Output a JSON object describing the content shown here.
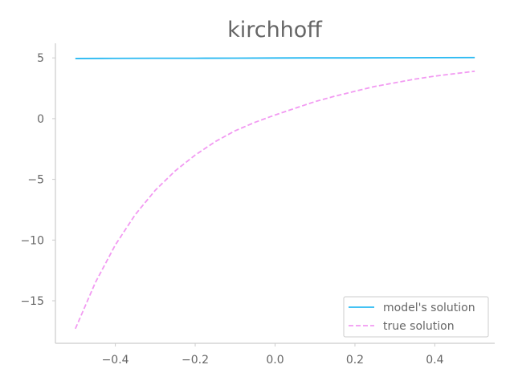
{
  "chart_data": {
    "type": "line",
    "title": "kirchhoff",
    "xlabel": "",
    "ylabel": "",
    "xlim": [
      -0.55,
      0.55
    ],
    "ylim": [
      -18.5,
      6.2
    ],
    "x_ticks": [
      -0.4,
      -0.2,
      0.0,
      0.2,
      0.4
    ],
    "x_tick_labels": [
      "−0.4",
      "−0.2",
      "0.0",
      "0.2",
      "0.4"
    ],
    "y_ticks": [
      5,
      0,
      -5,
      -10,
      -15
    ],
    "y_tick_labels": [
      "5",
      "0",
      "−5",
      "−10",
      "−15"
    ],
    "grid": false,
    "legend_position": "lower-right",
    "series": [
      {
        "name": "model's solution",
        "color": "#29b9f2",
        "style": "solid",
        "x": [
          -0.5,
          -0.4,
          -0.3,
          -0.2,
          -0.1,
          0.0,
          0.1,
          0.2,
          0.3,
          0.4,
          0.5
        ],
        "y": [
          4.95,
          4.96,
          4.97,
          4.97,
          4.98,
          4.99,
          5.0,
          5.0,
          5.01,
          5.02,
          5.03
        ]
      },
      {
        "name": "true solution",
        "color": "#f29af2",
        "style": "dashed",
        "x": [
          -0.5,
          -0.45,
          -0.4,
          -0.35,
          -0.3,
          -0.25,
          -0.2,
          -0.15,
          -0.1,
          -0.05,
          0.0,
          0.05,
          0.1,
          0.15,
          0.2,
          0.25,
          0.3,
          0.35,
          0.4,
          0.45,
          0.5
        ],
        "y": [
          -17.3,
          -13.5,
          -10.4,
          -7.9,
          -5.9,
          -4.3,
          -3.0,
          -1.9,
          -1.0,
          -0.3,
          0.3,
          0.85,
          1.4,
          1.85,
          2.25,
          2.65,
          2.95,
          3.25,
          3.5,
          3.7,
          3.9
        ]
      }
    ]
  }
}
